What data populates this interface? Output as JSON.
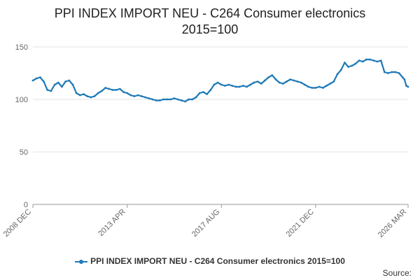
{
  "chart_data": {
    "type": "line",
    "title_lines": [
      "PPI INDEX IMPORT NEU - C264 Consumer electronics",
      "2015=100"
    ],
    "xlabel": "",
    "ylabel": "",
    "x_range": [
      "2008-12",
      "2026-03"
    ],
    "x_tick_labels": [
      {
        "value": "2008-12",
        "label": "2008 DEC"
      },
      {
        "value": "2013-04",
        "label": "2013 APR"
      },
      {
        "value": "2017-08",
        "label": "2017 AUG"
      },
      {
        "value": "2021-12",
        "label": "2021 DEC"
      },
      {
        "value": "2026-03",
        "label": "2026 MAR"
      }
    ],
    "ylim": [
      0,
      150
    ],
    "y_ticks": [
      0,
      50,
      100,
      150
    ],
    "grid": "horizontal",
    "legend_position": "bottom",
    "line_color": "#1f7ab8",
    "series": [
      {
        "name": "PPI INDEX IMPORT NEU - C264 Consumer electronics 2015=100",
        "points": [
          [
            "2008-12",
            118
          ],
          [
            "2009-02",
            120
          ],
          [
            "2009-04",
            121
          ],
          [
            "2009-06",
            117
          ],
          [
            "2009-08",
            109
          ],
          [
            "2009-10",
            108
          ],
          [
            "2009-12",
            114
          ],
          [
            "2010-02",
            116
          ],
          [
            "2010-04",
            112
          ],
          [
            "2010-06",
            117
          ],
          [
            "2010-08",
            118
          ],
          [
            "2010-10",
            114
          ],
          [
            "2010-12",
            106
          ],
          [
            "2011-02",
            104
          ],
          [
            "2011-04",
            105
          ],
          [
            "2011-06",
            103
          ],
          [
            "2011-08",
            102
          ],
          [
            "2011-10",
            103
          ],
          [
            "2011-12",
            106
          ],
          [
            "2012-02",
            108
          ],
          [
            "2012-04",
            111
          ],
          [
            "2012-06",
            110
          ],
          [
            "2012-08",
            109
          ],
          [
            "2012-10",
            109
          ],
          [
            "2012-12",
            110
          ],
          [
            "2013-02",
            107
          ],
          [
            "2013-04",
            106
          ],
          [
            "2013-06",
            104
          ],
          [
            "2013-08",
            103
          ],
          [
            "2013-10",
            104
          ],
          [
            "2013-12",
            103
          ],
          [
            "2014-02",
            102
          ],
          [
            "2014-04",
            101
          ],
          [
            "2014-06",
            100
          ],
          [
            "2014-08",
            99
          ],
          [
            "2014-10",
            99
          ],
          [
            "2014-12",
            100
          ],
          [
            "2015-02",
            100
          ],
          [
            "2015-04",
            100
          ],
          [
            "2015-06",
            101
          ],
          [
            "2015-08",
            100
          ],
          [
            "2015-10",
            99
          ],
          [
            "2015-12",
            98
          ],
          [
            "2016-02",
            100
          ],
          [
            "2016-04",
            100
          ],
          [
            "2016-06",
            102
          ],
          [
            "2016-08",
            106
          ],
          [
            "2016-10",
            107
          ],
          [
            "2016-12",
            105
          ],
          [
            "2017-02",
            109
          ],
          [
            "2017-04",
            114
          ],
          [
            "2017-06",
            116
          ],
          [
            "2017-08",
            114
          ],
          [
            "2017-10",
            113
          ],
          [
            "2017-12",
            114
          ],
          [
            "2018-02",
            113
          ],
          [
            "2018-04",
            112
          ],
          [
            "2018-06",
            112
          ],
          [
            "2018-08",
            113
          ],
          [
            "2018-10",
            112
          ],
          [
            "2018-12",
            114
          ],
          [
            "2019-02",
            116
          ],
          [
            "2019-04",
            117
          ],
          [
            "2019-06",
            115
          ],
          [
            "2019-08",
            118
          ],
          [
            "2019-10",
            121
          ],
          [
            "2019-12",
            123
          ],
          [
            "2020-02",
            119
          ],
          [
            "2020-04",
            116
          ],
          [
            "2020-06",
            115
          ],
          [
            "2020-08",
            117
          ],
          [
            "2020-10",
            119
          ],
          [
            "2020-12",
            118
          ],
          [
            "2021-02",
            117
          ],
          [
            "2021-04",
            116
          ],
          [
            "2021-06",
            114
          ],
          [
            "2021-08",
            112
          ],
          [
            "2021-10",
            111
          ],
          [
            "2021-12",
            111
          ],
          [
            "2022-02",
            112
          ],
          [
            "2022-04",
            111
          ],
          [
            "2022-06",
            113
          ],
          [
            "2022-08",
            115
          ],
          [
            "2022-10",
            117
          ],
          [
            "2022-12",
            124
          ],
          [
            "2023-02",
            128
          ],
          [
            "2023-04",
            135
          ],
          [
            "2023-06",
            131
          ],
          [
            "2023-08",
            132
          ],
          [
            "2023-10",
            134
          ],
          [
            "2023-12",
            137
          ],
          [
            "2024-02",
            136
          ],
          [
            "2024-04",
            138
          ],
          [
            "2024-06",
            138
          ],
          [
            "2024-08",
            137
          ],
          [
            "2024-10",
            136
          ],
          [
            "2024-12",
            137
          ],
          [
            "2025-02",
            126
          ],
          [
            "2025-04",
            125
          ],
          [
            "2025-06",
            126
          ],
          [
            "2025-08",
            126
          ],
          [
            "2025-10",
            125
          ],
          [
            "2025-12",
            121
          ],
          [
            "2026-01",
            119
          ],
          [
            "2026-02",
            113
          ],
          [
            "2026-03",
            112
          ]
        ]
      }
    ]
  },
  "source_label": "Source:"
}
